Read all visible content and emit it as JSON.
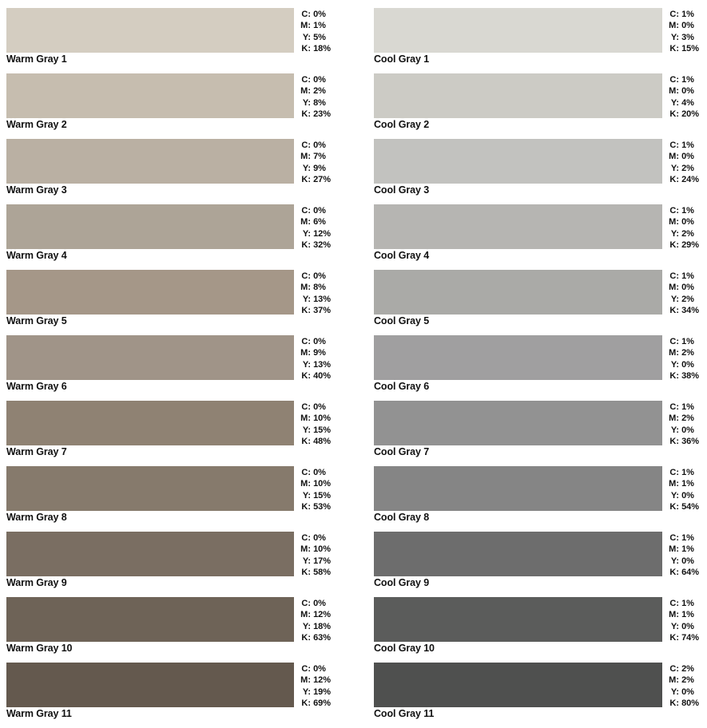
{
  "warm": [
    {
      "name": "Warm Gray 1",
      "color": "#d4cdc1",
      "c": "0%",
      "m": "1%",
      "y": "5%",
      "k": "18%"
    },
    {
      "name": "Warm Gray 2",
      "color": "#c6bdaf",
      "c": "0%",
      "m": "2%",
      "y": "8%",
      "k": "23%"
    },
    {
      "name": "Warm Gray 3",
      "color": "#bab0a3",
      "c": "0%",
      "m": "7%",
      "y": "9%",
      "k": "27%"
    },
    {
      "name": "Warm Gray 4",
      "color": "#ada497",
      "c": "0%",
      "m": "6%",
      "y": "12%",
      "k": "32%"
    },
    {
      "name": "Warm Gray 5",
      "color": "#a59788",
      "c": "0%",
      "m": "8%",
      "y": "13%",
      "k": "37%"
    },
    {
      "name": "Warm Gray 6",
      "color": "#a09488",
      "c": "0%",
      "m": "9%",
      "y": "13%",
      "k": "40%"
    },
    {
      "name": "Warm Gray 7",
      "color": "#8f8273",
      "c": "0%",
      "m": "10%",
      "y": "15%",
      "k": "48%"
    },
    {
      "name": "Warm Gray 8",
      "color": "#867a6c",
      "c": "0%",
      "m": "10%",
      "y": "15%",
      "k": "53%"
    },
    {
      "name": "Warm Gray 9",
      "color": "#7a6e62",
      "c": "0%",
      "m": "10%",
      "y": "17%",
      "k": "58%"
    },
    {
      "name": "Warm Gray 10",
      "color": "#6e6357",
      "c": "0%",
      "m": "12%",
      "y": "18%",
      "k": "63%"
    },
    {
      "name": "Warm Gray 11",
      "color": "#64594e",
      "c": "0%",
      "m": "12%",
      "y": "19%",
      "k": "69%"
    }
  ],
  "cool": [
    {
      "name": "Cool Gray 1",
      "color": "#d9d8d2",
      "c": "1%",
      "m": "0%",
      "y": "3%",
      "k": "15%"
    },
    {
      "name": "Cool Gray 2",
      "color": "#cccbc5",
      "c": "1%",
      "m": "0%",
      "y": "4%",
      "k": "20%"
    },
    {
      "name": "Cool Gray 3",
      "color": "#c2c2bf",
      "c": "1%",
      "m": "0%",
      "y": "2%",
      "k": "24%"
    },
    {
      "name": "Cool Gray 4",
      "color": "#b6b5b2",
      "c": "1%",
      "m": "0%",
      "y": "2%",
      "k": "29%"
    },
    {
      "name": "Cool Gray 5",
      "color": "#aaaaa7",
      "c": "1%",
      "m": "0%",
      "y": "2%",
      "k": "34%"
    },
    {
      "name": "Cool Gray 6",
      "color": "#a09fa0",
      "c": "1%",
      "m": "2%",
      "y": "0%",
      "k": "38%"
    },
    {
      "name": "Cool Gray 7",
      "color": "#929292",
      "c": "1%",
      "m": "2%",
      "y": "0%",
      "k": "36%"
    },
    {
      "name": "Cool Gray 8",
      "color": "#858585",
      "c": "1%",
      "m": "1%",
      "y": "0%",
      "k": "54%"
    },
    {
      "name": "Cool Gray 9",
      "color": "#6d6d6d",
      "c": "1%",
      "m": "1%",
      "y": "0%",
      "k": "64%"
    },
    {
      "name": "Cool Gray 10",
      "color": "#5b5c5b",
      "c": "1%",
      "m": "1%",
      "y": "0%",
      "k": "74%"
    },
    {
      "name": "Cool Gray 11",
      "color": "#4f504f",
      "c": "2%",
      "m": "2%",
      "y": "0%",
      "k": "80%"
    }
  ],
  "labels": {
    "c": "C:",
    "m": "M:",
    "y": "Y:",
    "k": "K:"
  }
}
